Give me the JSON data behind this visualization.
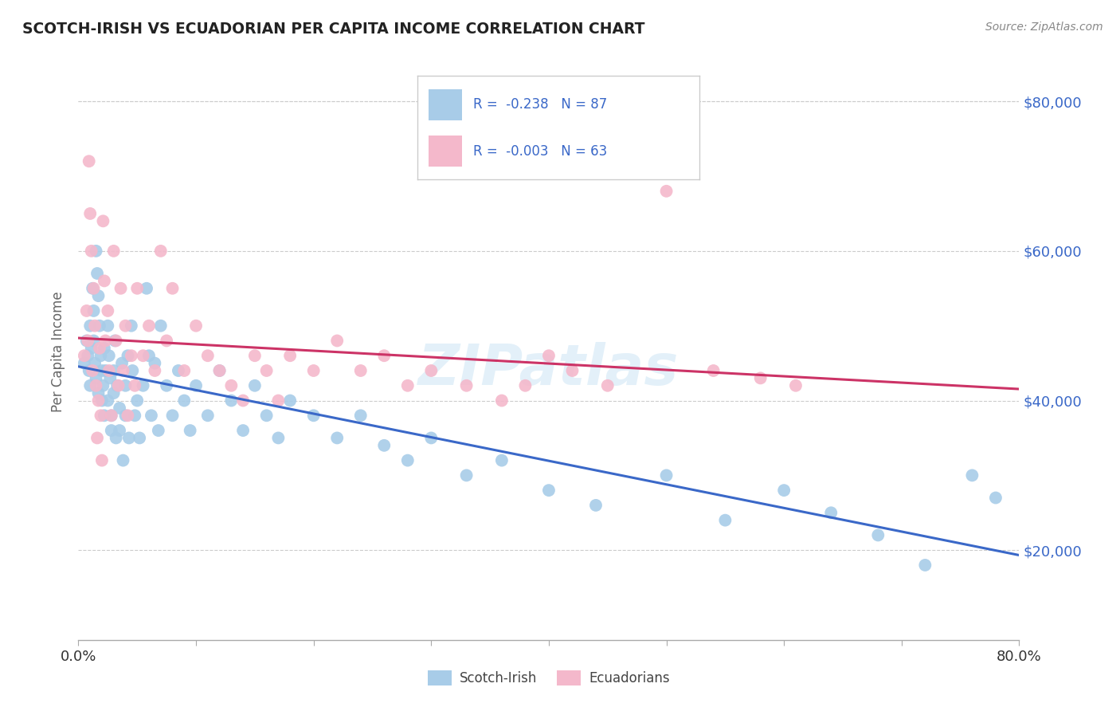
{
  "title": "SCOTCH-IRISH VS ECUADORIAN PER CAPITA INCOME CORRELATION CHART",
  "source": "Source: ZipAtlas.com",
  "ylabel": "Per Capita Income",
  "xlim": [
    0.0,
    0.8
  ],
  "ylim": [
    8000,
    85000
  ],
  "yticks": [
    20000,
    40000,
    60000,
    80000
  ],
  "ytick_labels": [
    "$20,000",
    "$40,000",
    "$60,000",
    "$80,000"
  ],
  "xtick_labels": [
    "0.0%",
    "80.0%"
  ],
  "scotch_irish_color": "#a8cce8",
  "ecuadorian_color": "#f4b8cb",
  "scotch_irish_line_color": "#3a68c8",
  "ecuadorian_line_color": "#cc3366",
  "background_color": "#ffffff",
  "R_scotch": -0.238,
  "N_scotch": 87,
  "R_ecuadorian": -0.003,
  "N_ecuadorian": 63,
  "scotch_irish_x": [
    0.005,
    0.007,
    0.008,
    0.009,
    0.01,
    0.01,
    0.011,
    0.012,
    0.013,
    0.013,
    0.014,
    0.015,
    0.015,
    0.016,
    0.017,
    0.017,
    0.018,
    0.019,
    0.02,
    0.02,
    0.021,
    0.022,
    0.022,
    0.023,
    0.025,
    0.025,
    0.026,
    0.027,
    0.028,
    0.028,
    0.03,
    0.03,
    0.031,
    0.032,
    0.033,
    0.035,
    0.035,
    0.037,
    0.038,
    0.04,
    0.04,
    0.042,
    0.043,
    0.045,
    0.046,
    0.048,
    0.05,
    0.052,
    0.055,
    0.058,
    0.06,
    0.062,
    0.065,
    0.068,
    0.07,
    0.075,
    0.08,
    0.085,
    0.09,
    0.095,
    0.1,
    0.11,
    0.12,
    0.13,
    0.14,
    0.15,
    0.16,
    0.17,
    0.18,
    0.2,
    0.22,
    0.24,
    0.26,
    0.28,
    0.3,
    0.33,
    0.36,
    0.4,
    0.44,
    0.5,
    0.55,
    0.6,
    0.64,
    0.68,
    0.72,
    0.76,
    0.78
  ],
  "scotch_irish_y": [
    45000,
    48000,
    46000,
    44000,
    42000,
    50000,
    47000,
    55000,
    52000,
    48000,
    45000,
    60000,
    43000,
    57000,
    54000,
    41000,
    50000,
    46000,
    44000,
    40000,
    42000,
    38000,
    47000,
    44000,
    50000,
    40000,
    46000,
    43000,
    38000,
    36000,
    44000,
    41000,
    48000,
    35000,
    42000,
    39000,
    36000,
    45000,
    32000,
    42000,
    38000,
    46000,
    35000,
    50000,
    44000,
    38000,
    40000,
    35000,
    42000,
    55000,
    46000,
    38000,
    45000,
    36000,
    50000,
    42000,
    38000,
    44000,
    40000,
    36000,
    42000,
    38000,
    44000,
    40000,
    36000,
    42000,
    38000,
    35000,
    40000,
    38000,
    35000,
    38000,
    34000,
    32000,
    35000,
    30000,
    32000,
    28000,
    26000,
    30000,
    24000,
    28000,
    25000,
    22000,
    18000,
    30000,
    27000
  ],
  "ecuadorian_x": [
    0.005,
    0.007,
    0.008,
    0.009,
    0.01,
    0.011,
    0.012,
    0.013,
    0.014,
    0.015,
    0.016,
    0.017,
    0.018,
    0.019,
    0.02,
    0.021,
    0.022,
    0.023,
    0.025,
    0.026,
    0.028,
    0.03,
    0.032,
    0.034,
    0.036,
    0.038,
    0.04,
    0.042,
    0.045,
    0.048,
    0.05,
    0.055,
    0.06,
    0.065,
    0.07,
    0.075,
    0.08,
    0.09,
    0.1,
    0.11,
    0.12,
    0.13,
    0.14,
    0.15,
    0.16,
    0.17,
    0.18,
    0.2,
    0.22,
    0.24,
    0.26,
    0.28,
    0.3,
    0.33,
    0.36,
    0.38,
    0.4,
    0.42,
    0.45,
    0.5,
    0.54,
    0.58,
    0.61
  ],
  "ecuadorian_y": [
    46000,
    52000,
    48000,
    72000,
    65000,
    60000,
    44000,
    55000,
    50000,
    42000,
    35000,
    40000,
    47000,
    38000,
    32000,
    64000,
    56000,
    48000,
    52000,
    44000,
    38000,
    60000,
    48000,
    42000,
    55000,
    44000,
    50000,
    38000,
    46000,
    42000,
    55000,
    46000,
    50000,
    44000,
    60000,
    48000,
    55000,
    44000,
    50000,
    46000,
    44000,
    42000,
    40000,
    46000,
    44000,
    40000,
    46000,
    44000,
    48000,
    44000,
    46000,
    42000,
    44000,
    42000,
    40000,
    42000,
    46000,
    44000,
    42000,
    68000,
    44000,
    43000,
    42000
  ]
}
